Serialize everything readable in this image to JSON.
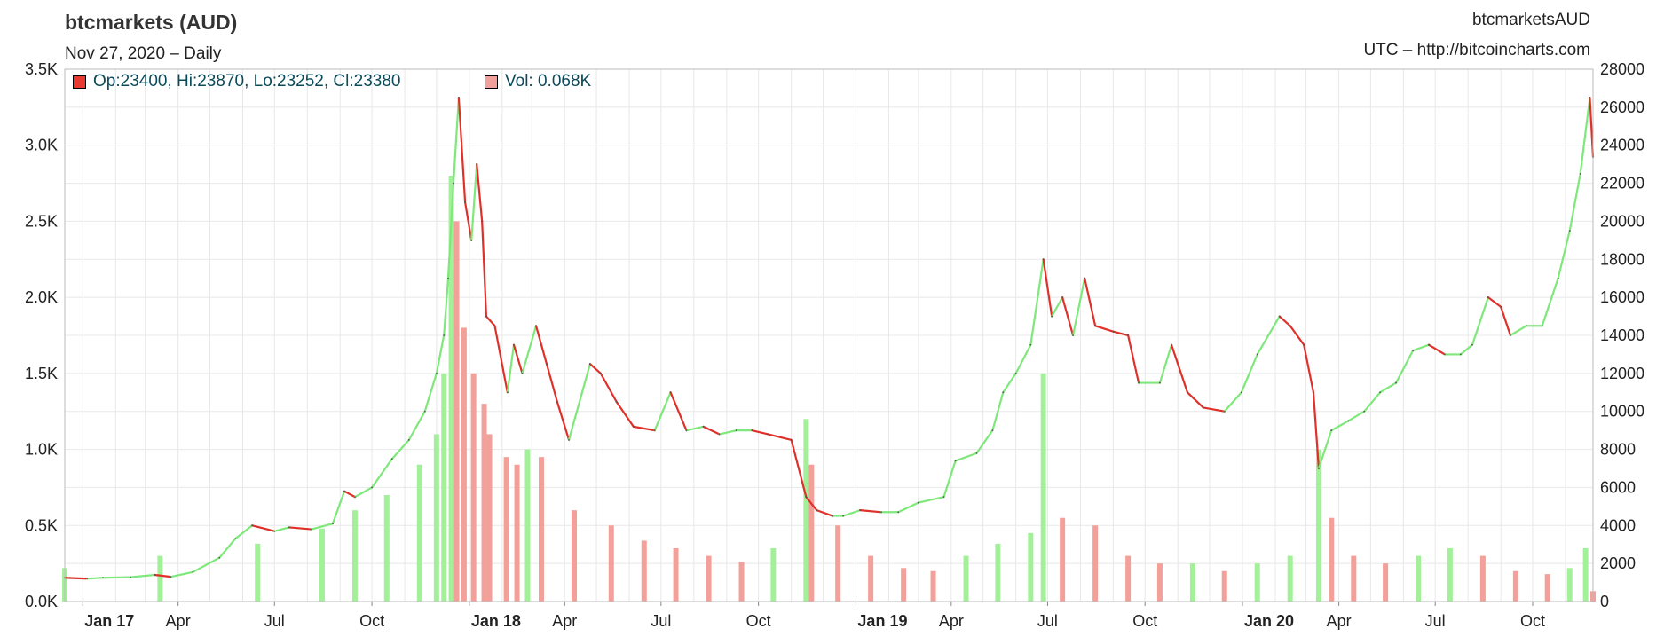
{
  "header": {
    "title": "btcmarkets (AUD)",
    "subtitle": "Nov 27, 2020 – Daily",
    "symbol": "btcmarketsAUD",
    "source": "UTC – http://bitcoincharts.com"
  },
  "legend": {
    "ohlc": "Op:23400, Hi:23870, Lo:23252, Cl:23380",
    "volume": "Vol: 0.068K"
  },
  "colors": {
    "up": "#7ee87a",
    "down": "#e0302a",
    "vol_up": "#a4f09a",
    "vol_down": "#f4a09a",
    "grid": "#e8e8e8",
    "ohlc_swatch": "#e83a30",
    "vol_swatch": "#f2a09c"
  },
  "chart_data": {
    "type": "line",
    "x_ticks": [
      {
        "date": "2017-01-01",
        "label": "Jan 17",
        "bold": true
      },
      {
        "date": "2017-04-01",
        "label": "Apr",
        "bold": false
      },
      {
        "date": "2017-07-01",
        "label": "Jul",
        "bold": false
      },
      {
        "date": "2017-10-01",
        "label": "Oct",
        "bold": false
      },
      {
        "date": "2018-01-01",
        "label": "Jan 18",
        "bold": true
      },
      {
        "date": "2018-04-01",
        "label": "Apr",
        "bold": false
      },
      {
        "date": "2018-07-01",
        "label": "Jul",
        "bold": false
      },
      {
        "date": "2018-10-01",
        "label": "Oct",
        "bold": false
      },
      {
        "date": "2019-01-01",
        "label": "Jan 19",
        "bold": true
      },
      {
        "date": "2019-04-01",
        "label": "Apr",
        "bold": false
      },
      {
        "date": "2019-07-01",
        "label": "Jul",
        "bold": false
      },
      {
        "date": "2019-10-01",
        "label": "Oct",
        "bold": false
      },
      {
        "date": "2020-01-01",
        "label": "Jan 20",
        "bold": true
      },
      {
        "date": "2020-04-01",
        "label": "Apr",
        "bold": false
      },
      {
        "date": "2020-07-01",
        "label": "Jul",
        "bold": false
      },
      {
        "date": "2020-10-01",
        "label": "Oct",
        "bold": false
      }
    ],
    "x_range": [
      "2016-12-15",
      "2020-11-27"
    ],
    "left_axis": {
      "name": "Volume",
      "ylim": [
        0,
        3500
      ],
      "tick_labels": [
        "0.0K",
        "0.5K",
        "1.0K",
        "1.5K",
        "2.0K",
        "2.5K",
        "3.0K",
        "3.5K"
      ],
      "tick_values": [
        0,
        500,
        1000,
        1500,
        2000,
        2500,
        3000,
        3500
      ]
    },
    "right_axis": {
      "name": "Price (AUD)",
      "ylim": [
        0,
        28000
      ],
      "tick_labels": [
        "0",
        "2000",
        "4000",
        "6000",
        "8000",
        "10000",
        "12000",
        "14000",
        "16000",
        "18000",
        "20000",
        "22000",
        "24000",
        "26000",
        "28000"
      ],
      "tick_values": [
        0,
        2000,
        4000,
        6000,
        8000,
        10000,
        12000,
        14000,
        16000,
        18000,
        20000,
        22000,
        24000,
        26000,
        28000
      ]
    },
    "grid": true,
    "series": [
      {
        "type": "line",
        "axis": "right",
        "x": [
          "2016-12-15",
          "2017-01-05",
          "2017-01-20",
          "2017-02-15",
          "2017-03-10",
          "2017-03-25",
          "2017-04-15",
          "2017-05-10",
          "2017-05-25",
          "2017-06-10",
          "2017-07-01",
          "2017-07-15",
          "2017-08-05",
          "2017-08-25",
          "2017-09-05",
          "2017-09-15",
          "2017-10-01",
          "2017-10-20",
          "2017-11-05",
          "2017-11-20",
          "2017-12-01",
          "2017-12-08",
          "2017-12-12",
          "2017-12-17",
          "2017-12-22",
          "2017-12-28",
          "2018-01-03",
          "2018-01-08",
          "2018-01-13",
          "2018-01-17",
          "2018-01-25",
          "2018-02-06",
          "2018-02-12",
          "2018-02-20",
          "2018-03-05",
          "2018-03-15",
          "2018-03-25",
          "2018-04-05",
          "2018-04-25",
          "2018-05-05",
          "2018-05-20",
          "2018-06-05",
          "2018-06-25",
          "2018-07-10",
          "2018-07-25",
          "2018-08-10",
          "2018-08-25",
          "2018-09-10",
          "2018-09-25",
          "2018-10-10",
          "2018-11-01",
          "2018-11-15",
          "2018-11-25",
          "2018-12-10",
          "2018-12-20",
          "2019-01-05",
          "2019-01-25",
          "2019-02-10",
          "2019-03-01",
          "2019-03-25",
          "2019-04-05",
          "2019-04-25",
          "2019-05-10",
          "2019-05-20",
          "2019-06-01",
          "2019-06-15",
          "2019-06-27",
          "2019-07-05",
          "2019-07-15",
          "2019-07-25",
          "2019-08-05",
          "2019-08-15",
          "2019-09-01",
          "2019-09-15",
          "2019-09-25",
          "2019-10-15",
          "2019-10-26",
          "2019-11-10",
          "2019-11-25",
          "2019-12-15",
          "2019-12-31",
          "2020-01-15",
          "2020-02-05",
          "2020-02-15",
          "2020-02-28",
          "2020-03-08",
          "2020-03-13",
          "2020-03-25",
          "2020-04-10",
          "2020-04-25",
          "2020-05-10",
          "2020-05-25",
          "2020-06-10",
          "2020-06-25",
          "2020-07-10",
          "2020-07-25",
          "2020-08-05",
          "2020-08-20",
          "2020-09-01",
          "2020-09-10",
          "2020-09-25",
          "2020-10-10",
          "2020-10-25",
          "2020-11-05",
          "2020-11-15",
          "2020-11-24",
          "2020-11-27"
        ],
        "values": [
          1250,
          1200,
          1250,
          1280,
          1400,
          1300,
          1550,
          2300,
          3300,
          4000,
          3700,
          3900,
          3800,
          4100,
          5800,
          5500,
          6000,
          7500,
          8500,
          10000,
          12000,
          14000,
          17000,
          22000,
          26500,
          21000,
          19000,
          23000,
          20000,
          15000,
          14500,
          11000,
          13500,
          12000,
          14500,
          12500,
          10500,
          8500,
          12500,
          12000,
          10500,
          9200,
          9000,
          11000,
          9000,
          9200,
          8800,
          9000,
          9000,
          8800,
          8500,
          5500,
          4800,
          4500,
          4500,
          4800,
          4700,
          4700,
          5200,
          5500,
          7400,
          7800,
          9000,
          11000,
          12000,
          13500,
          18000,
          15000,
          16000,
          14000,
          17000,
          14500,
          14200,
          14000,
          11500,
          11500,
          13500,
          11000,
          10200,
          10000,
          11000,
          13000,
          15000,
          14500,
          13500,
          11000,
          7000,
          9000,
          9500,
          10000,
          11000,
          11500,
          13200,
          13500,
          13000,
          13000,
          13500,
          16000,
          15500,
          14000,
          14500,
          14500,
          17000,
          19500,
          22500,
          26500,
          23380
        ]
      },
      {
        "type": "bar",
        "axis": "left",
        "name": "Vol",
        "x": [
          "2016-12-15",
          "2017-03-15",
          "2017-06-15",
          "2017-08-15",
          "2017-09-15",
          "2017-10-15",
          "2017-11-15",
          "2017-12-01",
          "2017-12-08",
          "2017-12-15",
          "2017-12-20",
          "2017-12-27",
          "2018-01-05",
          "2018-01-15",
          "2018-01-20",
          "2018-02-05",
          "2018-02-15",
          "2018-02-25",
          "2018-03-10",
          "2018-04-10",
          "2018-05-15",
          "2018-06-15",
          "2018-07-15",
          "2018-08-15",
          "2018-09-15",
          "2018-10-15",
          "2018-11-15",
          "2018-11-20",
          "2018-12-15",
          "2019-01-15",
          "2019-02-15",
          "2019-03-15",
          "2019-04-15",
          "2019-05-15",
          "2019-06-15",
          "2019-06-27",
          "2019-07-15",
          "2019-08-15",
          "2019-09-15",
          "2019-10-15",
          "2019-11-15",
          "2019-12-15",
          "2020-01-15",
          "2020-02-15",
          "2020-03-13",
          "2020-03-25",
          "2020-04-15",
          "2020-05-15",
          "2020-06-15",
          "2020-07-15",
          "2020-08-15",
          "2020-09-15",
          "2020-10-15",
          "2020-11-05",
          "2020-11-20",
          "2020-11-27"
        ],
        "values": [
          220,
          300,
          380,
          480,
          600,
          700,
          900,
          1100,
          1500,
          2800,
          2500,
          1800,
          1500,
          1300,
          1100,
          950,
          900,
          1000,
          950,
          600,
          500,
          400,
          350,
          300,
          260,
          350,
          1200,
          900,
          500,
          300,
          220,
          200,
          300,
          380,
          450,
          1500,
          550,
          500,
          300,
          250,
          250,
          200,
          250,
          300,
          1000,
          550,
          300,
          250,
          300,
          350,
          300,
          200,
          180,
          220,
          350,
          68
        ]
      }
    ],
    "last_bar": {
      "open": 23400,
      "high": 23870,
      "low": 23252,
      "close": 23380,
      "volume": 68
    }
  }
}
